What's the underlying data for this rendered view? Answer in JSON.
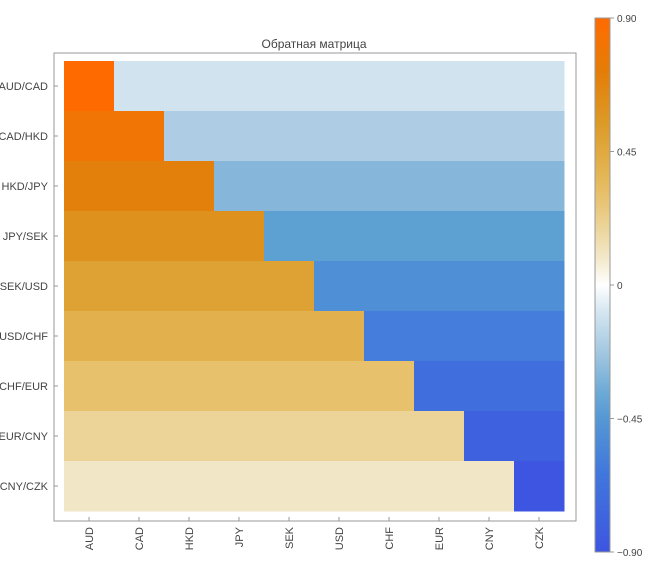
{
  "chart_data": {
    "type": "heatmap",
    "title": "Обратная матрица",
    "row_labels": [
      "AUD/CAD",
      "CAD/HKD",
      "HKD/JPY",
      "JPY/SEK",
      "SEK/USD",
      "USD/CHF",
      "CHF/EUR",
      "EUR/CNY",
      "CNY/CZK"
    ],
    "column_labels": [
      "AUD",
      "CAD",
      "HKD",
      "JPY",
      "SEK",
      "USD",
      "CHF",
      "EUR",
      "CNY",
      "CZK"
    ],
    "values": [
      [
        0.9,
        -0.1,
        -0.1,
        -0.1,
        -0.1,
        -0.1,
        -0.1,
        -0.1,
        -0.1,
        -0.1
      ],
      [
        0.8,
        0.8,
        -0.2,
        -0.2,
        -0.2,
        -0.2,
        -0.2,
        -0.2,
        -0.2,
        -0.2
      ],
      [
        0.7,
        0.7,
        0.7,
        -0.3,
        -0.3,
        -0.3,
        -0.3,
        -0.3,
        -0.3,
        -0.3
      ],
      [
        0.6,
        0.6,
        0.6,
        0.6,
        -0.4,
        -0.4,
        -0.4,
        -0.4,
        -0.4,
        -0.4
      ],
      [
        0.5,
        0.5,
        0.5,
        0.5,
        0.5,
        -0.5,
        -0.5,
        -0.5,
        -0.5,
        -0.5
      ],
      [
        0.4,
        0.4,
        0.4,
        0.4,
        0.4,
        0.4,
        -0.6,
        -0.6,
        -0.6,
        -0.6
      ],
      [
        0.3,
        0.3,
        0.3,
        0.3,
        0.3,
        0.3,
        0.3,
        -0.7,
        -0.7,
        -0.7
      ],
      [
        0.2,
        0.2,
        0.2,
        0.2,
        0.2,
        0.2,
        0.2,
        0.2,
        -0.8,
        -0.8
      ],
      [
        0.1,
        0.1,
        0.1,
        0.1,
        0.1,
        0.1,
        0.1,
        0.1,
        0.1,
        -0.9
      ]
    ],
    "colorbar": {
      "range": [
        -0.9,
        0.9
      ],
      "ticks": [
        0.9,
        0.45,
        0,
        -0.45,
        -0.9
      ],
      "tick_labels": [
        "0.90",
        "0.45",
        "0",
        "−0.45",
        "−0.90"
      ]
    },
    "colors": {
      "low": "#3d55e0",
      "neutral": "#ffffff",
      "high": "#ff6a00"
    }
  }
}
